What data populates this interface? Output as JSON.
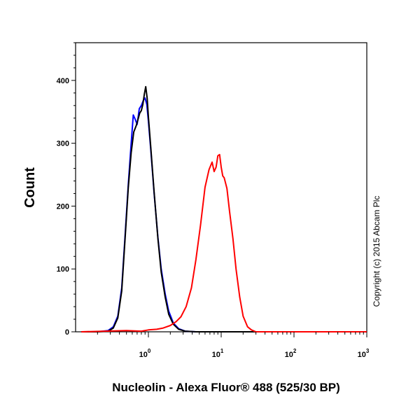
{
  "chart_data": {
    "type": "line",
    "xlabel": "Nucleolin - Alexa Fluor® 488 (525/30 BP)",
    "ylabel": "Count",
    "x_scale": "log",
    "xlim": [
      0.1,
      1000
    ],
    "ylim": [
      0,
      460
    ],
    "x_ticks": [
      {
        "value": 1,
        "base": "10",
        "exp": "0"
      },
      {
        "value": 10,
        "base": "10",
        "exp": "1"
      },
      {
        "value": 100,
        "base": "10",
        "exp": "2"
      },
      {
        "value": 1000,
        "base": "10",
        "exp": "3"
      }
    ],
    "y_ticks": [
      0,
      100,
      200,
      300,
      400
    ],
    "copyright": "Copyright (c) 2015 Abcam Plc",
    "series": [
      {
        "color": "#0000ff",
        "x": [
          0.12,
          0.2,
          0.28,
          0.33,
          0.38,
          0.43,
          0.48,
          0.53,
          0.58,
          0.62,
          0.66,
          0.7,
          0.75,
          0.8,
          0.85,
          0.9,
          0.95,
          1.0,
          1.08,
          1.2,
          1.35,
          1.5,
          1.7,
          1.9,
          2.2,
          2.6,
          3.2,
          4.5,
          10,
          100,
          1000
        ],
        "y": [
          0,
          0,
          2,
          8,
          25,
          70,
          155,
          235,
          300,
          345,
          338,
          330,
          355,
          360,
          368,
          372,
          362,
          335,
          288,
          220,
          150,
          100,
          60,
          33,
          14,
          5,
          1,
          0,
          0,
          0,
          0
        ]
      },
      {
        "color": "#000000",
        "x": [
          0.12,
          0.2,
          0.28,
          0.33,
          0.38,
          0.43,
          0.48,
          0.53,
          0.58,
          0.63,
          0.68,
          0.72,
          0.76,
          0.8,
          0.84,
          0.88,
          0.92,
          0.96,
          1.0,
          1.08,
          1.2,
          1.35,
          1.5,
          1.7,
          1.9,
          2.2,
          2.6,
          3.2,
          4.5,
          10,
          100,
          1000
        ],
        "y": [
          0,
          0,
          1,
          6,
          22,
          65,
          150,
          230,
          285,
          318,
          328,
          338,
          348,
          352,
          362,
          378,
          390,
          372,
          342,
          292,
          222,
          148,
          95,
          55,
          28,
          12,
          4,
          1,
          0,
          0,
          0,
          0
        ]
      },
      {
        "color": "#ff0000",
        "x": [
          0.12,
          0.5,
          0.8,
          1.0,
          1.3,
          1.6,
          2.0,
          2.4,
          2.8,
          3.3,
          3.9,
          4.5,
          5.2,
          6.0,
          6.8,
          7.5,
          8.0,
          8.5,
          9.0,
          9.5,
          10.0,
          10.5,
          11.0,
          12.0,
          13.0,
          14.5,
          16.0,
          18.0,
          20.0,
          23.0,
          26.0,
          30.0,
          40.0,
          100,
          1000
        ],
        "y": [
          0,
          2,
          1,
          3,
          4,
          6,
          10,
          16,
          24,
          40,
          70,
          115,
          170,
          230,
          258,
          270,
          255,
          262,
          280,
          282,
          262,
          248,
          245,
          228,
          192,
          148,
          100,
          55,
          25,
          8,
          3,
          0,
          0,
          0,
          0
        ]
      }
    ]
  }
}
